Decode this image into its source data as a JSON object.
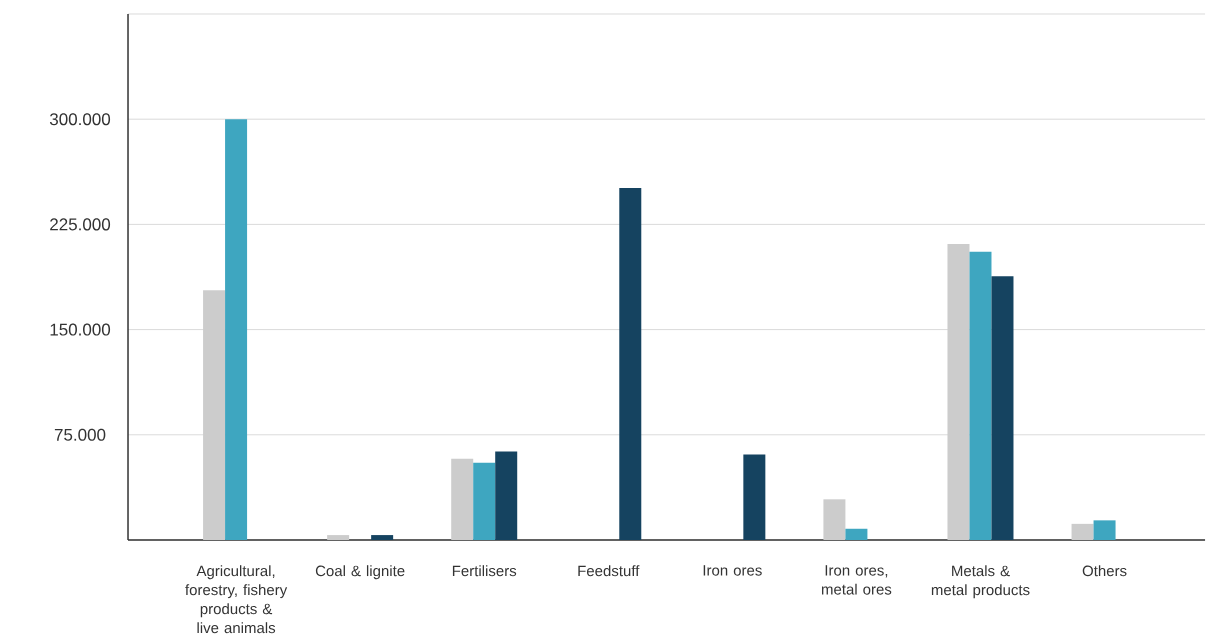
{
  "chart_data": {
    "type": "bar",
    "categories": [
      "Agricultural, forestry, fishery products & live animals",
      "Coal & lignite",
      "Fertilisers",
      "Feedstuff",
      "Iron ores",
      "Iron ores, metal ores",
      "Metals & metal products",
      "Others"
    ],
    "series": [
      {
        "color": "#cccccc",
        "values": [
          178,
          3.5,
          58,
          null,
          null,
          29,
          211,
          11.5
        ]
      },
      {
        "color": "#3ea6c0",
        "values": [
          300,
          null,
          55,
          null,
          null,
          8,
          205.5,
          14
        ]
      },
      {
        "color": "#154360",
        "values": [
          null,
          3.5,
          63,
          251,
          61,
          null,
          188,
          null
        ]
      }
    ],
    "ylim": [
      0,
      375
    ],
    "yticks": [
      {
        "value": 0,
        "label": null
      },
      {
        "value": 75,
        "label": "75.000"
      },
      {
        "value": 150,
        "label": "150.000"
      },
      {
        "value": 225,
        "label": "225.000"
      },
      {
        "value": 300,
        "label": "300.000"
      },
      {
        "value": 375,
        "label": null
      }
    ],
    "grid": "y"
  }
}
